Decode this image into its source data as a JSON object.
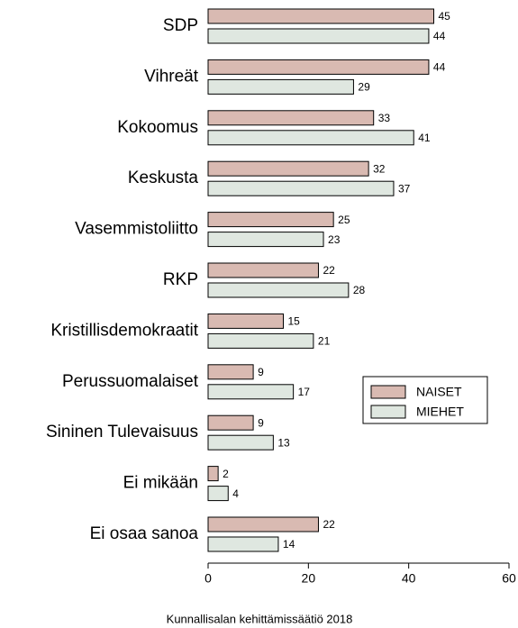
{
  "chart_data": {
    "type": "bar",
    "orientation": "horizontal",
    "categories": [
      "SDP",
      "Vihreät",
      "Kokoomus",
      "Keskusta",
      "Vasemmistoliitto",
      "RKP",
      "Kristillisdemokraatit",
      "Perussuomalaiset",
      "Sininen Tulevaisuus",
      "Ei mikään",
      "Ei osaa sanoa"
    ],
    "series": [
      {
        "name": "NAISET",
        "color": "#d9bab2",
        "values": [
          45,
          44,
          33,
          32,
          25,
          22,
          15,
          9,
          9,
          2,
          22
        ]
      },
      {
        "name": "MIEHET",
        "color": "#dfe7e0",
        "values": [
          44,
          29,
          41,
          37,
          23,
          28,
          21,
          17,
          13,
          4,
          14
        ]
      }
    ],
    "xlim": [
      0,
      60
    ],
    "xticks": [
      0,
      20,
      40,
      60
    ],
    "source": "Kunnallisalan kehittämissäätiö 2018"
  }
}
